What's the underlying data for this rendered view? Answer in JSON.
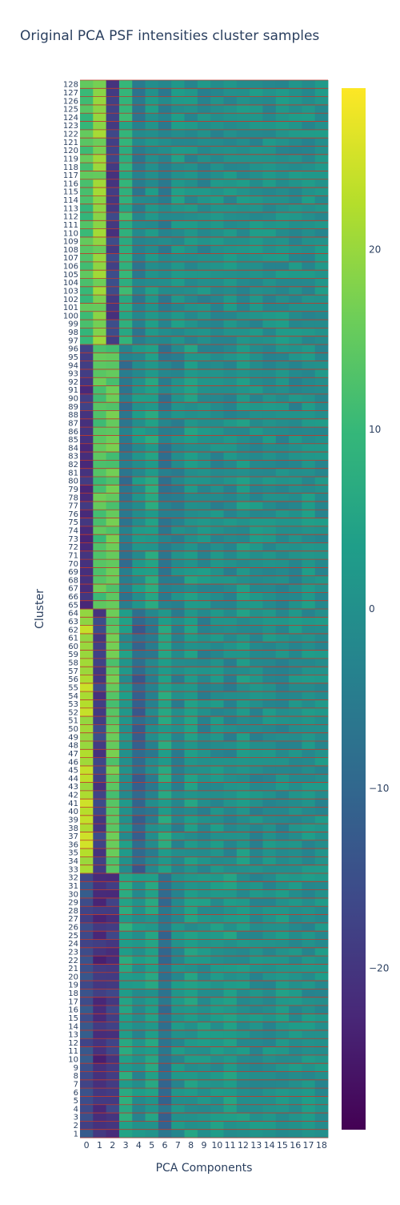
{
  "chart_data": {
    "type": "heatmap",
    "title": "Original PCA PSF intensities cluster samples",
    "xlabel": "PCA Components",
    "ylabel": "Cluster",
    "x_categories": [
      "0",
      "1",
      "2",
      "3",
      "4",
      "5",
      "6",
      "7",
      "8",
      "9",
      "10",
      "11",
      "12",
      "13",
      "14",
      "15",
      "16",
      "17",
      "18"
    ],
    "y_categories": [
      "1",
      "2",
      "3",
      "4",
      "5",
      "6",
      "7",
      "8",
      "9",
      "10",
      "11",
      "12",
      "13",
      "14",
      "15",
      "16",
      "17",
      "18",
      "19",
      "20",
      "21",
      "22",
      "23",
      "24",
      "25",
      "26",
      "27",
      "28",
      "29",
      "30",
      "31",
      "32",
      "33",
      "34",
      "35",
      "36",
      "37",
      "38",
      "39",
      "40",
      "41",
      "42",
      "43",
      "44",
      "45",
      "46",
      "47",
      "48",
      "49",
      "50",
      "51",
      "52",
      "53",
      "54",
      "55",
      "56",
      "57",
      "58",
      "59",
      "60",
      "61",
      "62",
      "63",
      "64",
      "65",
      "66",
      "67",
      "68",
      "69",
      "70",
      "71",
      "72",
      "73",
      "74",
      "75",
      "76",
      "77",
      "78",
      "79",
      "80",
      "81",
      "82",
      "83",
      "84",
      "85",
      "86",
      "87",
      "88",
      "89",
      "90",
      "91",
      "92",
      "93",
      "94",
      "95",
      "96",
      "97",
      "98",
      "99",
      "100",
      "101",
      "102",
      "103",
      "104",
      "105",
      "106",
      "107",
      "108",
      "109",
      "110",
      "111",
      "112",
      "113",
      "114",
      "115",
      "116",
      "117",
      "118",
      "119",
      "120",
      "121",
      "122",
      "123",
      "124",
      "125",
      "126",
      "127",
      "128"
    ],
    "colorscale": "viridis",
    "zmin": -29,
    "zmax": 29,
    "colorbar_ticks": [
      20,
      10,
      0,
      -10,
      -20
    ],
    "row_separator_color": "#c0392b",
    "group_profiles": [
      {
        "clusters": "1-32",
        "values": [
          -15,
          -21,
          -19,
          5,
          0,
          3,
          -8,
          0,
          2,
          1,
          1,
          2,
          1,
          0,
          0,
          1,
          0,
          0,
          0
        ]
      },
      {
        "clusters": "33-64",
        "values": [
          22,
          -18,
          14,
          1,
          -10,
          -3,
          4,
          -2,
          2,
          -2,
          0,
          -2,
          1,
          -1,
          0,
          -1,
          0,
          0,
          0
        ]
      },
      {
        "clusters": "65-96",
        "values": [
          -20,
          13,
          14,
          -6,
          1,
          4,
          -5,
          -2,
          2,
          0,
          -1,
          -1,
          1,
          0,
          0,
          -1,
          -1,
          1,
          0
        ]
      },
      {
        "clusters": "97-128",
        "values": [
          12,
          18,
          -18,
          8,
          -4,
          1,
          -3,
          1,
          0,
          -1,
          0,
          0,
          0,
          0,
          0,
          0,
          0,
          0,
          0
        ]
      }
    ]
  }
}
